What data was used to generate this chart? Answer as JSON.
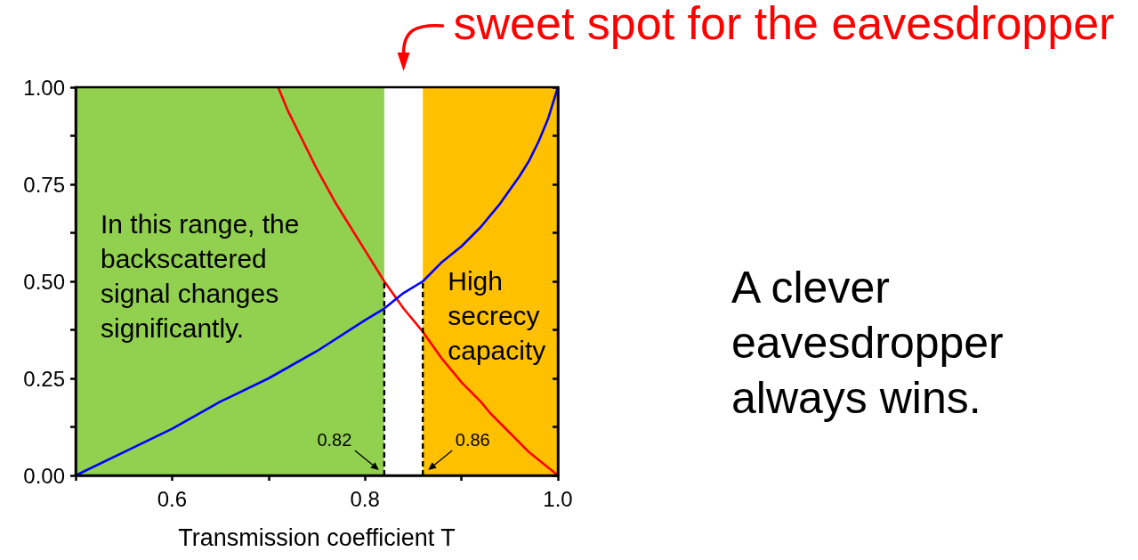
{
  "chart_data": {
    "type": "line",
    "xlabel": "Transmission coefficient T",
    "xlim": [
      0.5,
      1.0
    ],
    "xticks": [
      {
        "value": 0.5,
        "label": null
      },
      0.6,
      {
        "value": 0.7,
        "label": null
      },
      0.8,
      {
        "value": 0.9,
        "label": null
      },
      {
        "value": 1.0,
        "label": "1.0"
      }
    ],
    "ylim": [
      0,
      1
    ],
    "yticks": [
      {
        "value": 0,
        "label": "0.00"
      },
      {
        "value": 0.125,
        "label": null
      },
      {
        "value": 0.25,
        "label": "0.25"
      },
      {
        "value": 0.375,
        "label": null
      },
      {
        "value": 0.5,
        "label": "0.50"
      },
      {
        "value": 0.625,
        "label": null
      },
      {
        "value": 0.75,
        "label": "0.75"
      },
      {
        "value": 0.875,
        "label": null
      },
      {
        "value": 1,
        "label": "1.00"
      }
    ],
    "series": [
      {
        "color": "#ff0000",
        "x": [
          0.71,
          0.72,
          0.73,
          0.74,
          0.75,
          0.77,
          0.78,
          0.8,
          0.82,
          0.84,
          0.86,
          0.88,
          0.9,
          0.92,
          0.93,
          0.95,
          0.97,
          0.98,
          0.99,
          1.0
        ],
        "values": [
          1.0,
          0.94,
          0.89,
          0.84,
          0.79,
          0.7,
          0.66,
          0.58,
          0.5,
          0.43,
          0.37,
          0.3,
          0.24,
          0.19,
          0.16,
          0.11,
          0.06,
          0.04,
          0.02,
          0
        ]
      },
      {
        "color": "#0000ff",
        "x": [
          0.5,
          0.55,
          0.6,
          0.65,
          0.7,
          0.75,
          0.8,
          0.82,
          0.84,
          0.86,
          0.88,
          0.9,
          0.92,
          0.94,
          0.96,
          0.97,
          0.98,
          0.99,
          1.0
        ],
        "values": [
          0,
          0.06,
          0.12,
          0.19,
          0.25,
          0.32,
          0.4,
          0.43,
          0.47,
          0.5,
          0.55,
          0.59,
          0.64,
          0.7,
          0.77,
          0.81,
          0.86,
          0.92,
          1.0
        ]
      },
      {
        "color": "#000000",
        "line_style": "dashed",
        "x": [
          0.82,
          0.82
        ],
        "values": [
          0,
          0.5
        ]
      },
      {
        "color": "#000000",
        "line_style": "dashed",
        "x": [
          0.86,
          0.86
        ],
        "values": [
          0,
          0.5
        ]
      }
    ],
    "bands": [
      {
        "axis": "x",
        "from": 0.5,
        "to": 0.82,
        "label": "In this range, the backscattered signal changes significantly.",
        "color": "#92d050"
      },
      {
        "axis": "x",
        "from": 0.86,
        "to": 1.0,
        "label": "High secrecy capacity",
        "color": "#ffc000"
      }
    ],
    "annotations": [
      {
        "text": "0.82",
        "x": 0.82,
        "y": 0
      },
      {
        "text": "0.86",
        "x": 0.86,
        "y": 0
      },
      "sweet spot for the eavesdropper",
      "A clever eavesdropper always wins."
    ],
    "marker": "none",
    "line_style": "solid"
  }
}
